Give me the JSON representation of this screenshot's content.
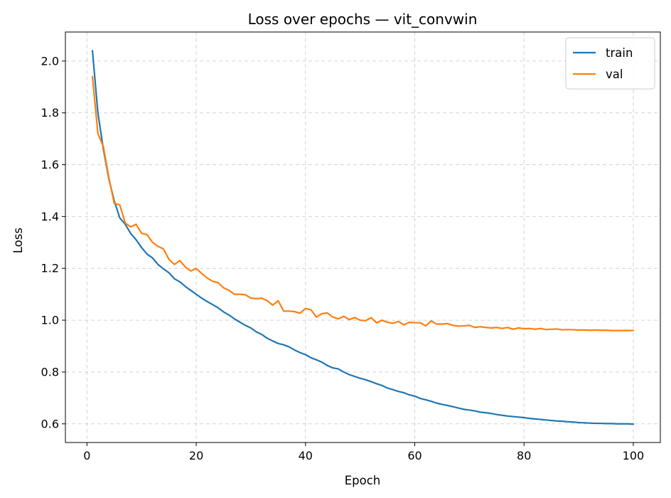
{
  "chart_data": {
    "type": "line",
    "title": "Loss over epochs — vit_convwin",
    "xlabel": "Epoch",
    "ylabel": "Loss",
    "xlim": [
      -3.95,
      104.95
    ],
    "ylim": [
      0.528,
      2.112
    ],
    "x_ticks": [
      0,
      20,
      40,
      60,
      80,
      100
    ],
    "y_ticks": [
      0.6,
      0.8,
      1.0,
      1.2,
      1.4,
      1.6,
      1.8,
      2.0
    ],
    "x_tick_labels": [
      "0",
      "20",
      "40",
      "60",
      "80",
      "100"
    ],
    "y_tick_labels": [
      "0.6",
      "0.8",
      "1.0",
      "1.2",
      "1.4",
      "1.6",
      "1.8",
      "2.0"
    ],
    "grid": true,
    "legend_position": "top-right",
    "x": [
      1,
      2,
      3,
      4,
      5,
      6,
      7,
      8,
      9,
      10,
      11,
      12,
      13,
      14,
      15,
      16,
      17,
      18,
      19,
      20,
      21,
      22,
      23,
      24,
      25,
      26,
      27,
      28,
      29,
      30,
      31,
      32,
      33,
      34,
      35,
      36,
      37,
      38,
      39,
      40,
      41,
      42,
      43,
      44,
      45,
      46,
      47,
      48,
      49,
      50,
      51,
      52,
      53,
      54,
      55,
      56,
      57,
      58,
      59,
      60,
      61,
      62,
      63,
      64,
      65,
      66,
      67,
      68,
      69,
      70,
      71,
      72,
      73,
      74,
      75,
      76,
      77,
      78,
      79,
      80,
      81,
      82,
      83,
      84,
      85,
      86,
      87,
      88,
      89,
      90,
      91,
      92,
      93,
      94,
      95,
      96,
      97,
      98,
      99,
      100
    ],
    "series": [
      {
        "name": "train",
        "color": "#1f77b4",
        "values": [
          2.04,
          1.8,
          1.66,
          1.545,
          1.46,
          1.395,
          1.37,
          1.335,
          1.31,
          1.28,
          1.255,
          1.24,
          1.215,
          1.198,
          1.183,
          1.16,
          1.148,
          1.13,
          1.115,
          1.1,
          1.085,
          1.072,
          1.06,
          1.048,
          1.032,
          1.02,
          1.005,
          0.992,
          0.98,
          0.97,
          0.955,
          0.945,
          0.93,
          0.92,
          0.91,
          0.905,
          0.897,
          0.885,
          0.875,
          0.867,
          0.855,
          0.847,
          0.838,
          0.825,
          0.816,
          0.812,
          0.8,
          0.79,
          0.783,
          0.776,
          0.77,
          0.763,
          0.755,
          0.748,
          0.738,
          0.732,
          0.725,
          0.72,
          0.712,
          0.707,
          0.698,
          0.693,
          0.687,
          0.68,
          0.675,
          0.671,
          0.666,
          0.661,
          0.656,
          0.653,
          0.65,
          0.645,
          0.643,
          0.64,
          0.636,
          0.633,
          0.63,
          0.628,
          0.626,
          0.624,
          0.621,
          0.619,
          0.617,
          0.615,
          0.613,
          0.611,
          0.61,
          0.608,
          0.607,
          0.605,
          0.604,
          0.603,
          0.602,
          0.602,
          0.601,
          0.601,
          0.6,
          0.6,
          0.6,
          0.599
        ]
      },
      {
        "name": "val",
        "color": "#ff7f0e",
        "values": [
          1.94,
          1.72,
          1.67,
          1.55,
          1.45,
          1.445,
          1.375,
          1.36,
          1.37,
          1.335,
          1.33,
          1.3,
          1.285,
          1.275,
          1.235,
          1.215,
          1.23,
          1.205,
          1.19,
          1.2,
          1.18,
          1.163,
          1.15,
          1.145,
          1.125,
          1.115,
          1.1,
          1.1,
          1.098,
          1.085,
          1.083,
          1.085,
          1.075,
          1.058,
          1.075,
          1.035,
          1.035,
          1.033,
          1.027,
          1.045,
          1.04,
          1.012,
          1.025,
          1.028,
          1.012,
          1.005,
          1.015,
          1.002,
          1.01,
          1.0,
          0.998,
          1.01,
          0.99,
          1.0,
          0.992,
          0.988,
          0.995,
          0.982,
          0.992,
          0.99,
          0.99,
          0.978,
          0.997,
          0.985,
          0.985,
          0.987,
          0.98,
          0.977,
          0.978,
          0.98,
          0.972,
          0.975,
          0.972,
          0.97,
          0.972,
          0.968,
          0.972,
          0.965,
          0.97,
          0.967,
          0.968,
          0.965,
          0.968,
          0.964,
          0.965,
          0.966,
          0.963,
          0.964,
          0.963,
          0.962,
          0.962,
          0.961,
          0.962,
          0.961,
          0.961,
          0.96,
          0.96,
          0.96,
          0.96,
          0.96
        ]
      }
    ]
  }
}
